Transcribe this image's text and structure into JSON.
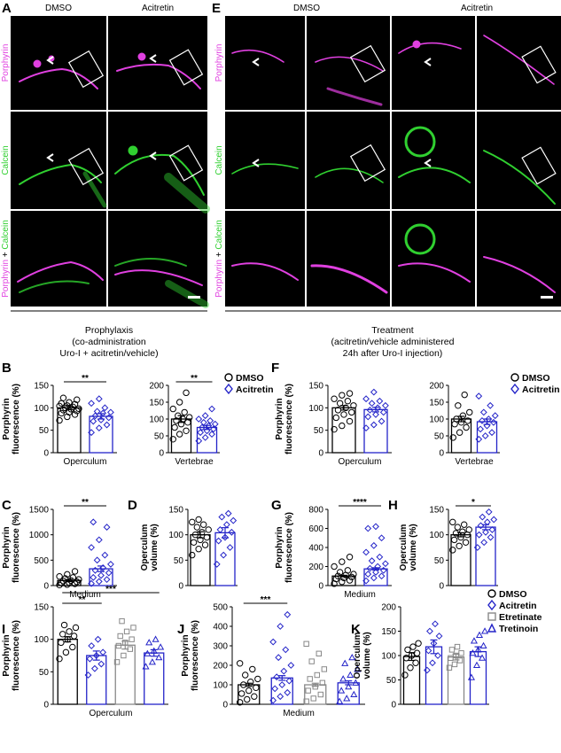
{
  "colors": {
    "dmso": "#000000",
    "acitretin": "#2323c8",
    "etretinate": "#888888",
    "tretinoin": "#2323c8",
    "porphyrin": "#e040e0",
    "calcein": "#30d030"
  },
  "microscopy": {
    "panel_a": "A",
    "panel_e": "E",
    "col_dmso": "DMSO",
    "col_acitretin": "Acitretin",
    "row_porphyrin": "Porphyrin",
    "row_calcein": "Calcein",
    "row_merge_a": "Porphyrin",
    "row_merge_plus": " + ",
    "row_merge_b": "Calcein"
  },
  "captions": {
    "prophylaxis": [
      "Prophylaxis",
      "(co-administration",
      "Uro-I + acitretin/vehicle)"
    ],
    "treatment": [
      "Treatment",
      "(acitretin/vehicle administered",
      "24h after Uro-I injection)"
    ]
  },
  "legend_bf": {
    "items": [
      "DMSO",
      "Acitretin"
    ]
  },
  "legend_k": {
    "items": [
      "DMSO",
      "Acitretin",
      "Etretinate",
      "Tretinoin"
    ]
  },
  "chart_data": [
    {
      "id": "B1",
      "panel": "B",
      "type": "bar",
      "ylabel": [
        "Porphyrin",
        "fluorescence (%)"
      ],
      "ylim": [
        0,
        150
      ],
      "yticks": [
        0,
        50,
        100,
        150
      ],
      "xlabel": "Operculum",
      "categories": [
        "DMSO",
        "Acitretin"
      ],
      "values": [
        100,
        81
      ],
      "sem": [
        4,
        6
      ],
      "points": [
        [
          72,
          80,
          85,
          88,
          90,
          93,
          95,
          97,
          98,
          100,
          102,
          104,
          105,
          108,
          110,
          112,
          118,
          122
        ],
        [
          45,
          55,
          62,
          70,
          73,
          78,
          82,
          88,
          90,
          92,
          100,
          110,
          120
        ]
      ],
      "significance": [
        {
          "from": 0,
          "to": 1,
          "label": "**"
        }
      ]
    },
    {
      "id": "B2",
      "type": "bar",
      "ylim": [
        0,
        200
      ],
      "yticks": [
        0,
        50,
        100,
        150,
        200
      ],
      "xlabel": "Vertebrae",
      "categories": [
        "DMSO",
        "Acitretin"
      ],
      "values": [
        100,
        75
      ],
      "sem": [
        10,
        6
      ],
      "points": [
        [
          40,
          55,
          65,
          75,
          85,
          90,
          95,
          100,
          105,
          110,
          120,
          130,
          150,
          178
        ],
        [
          35,
          45,
          55,
          60,
          65,
          70,
          75,
          80,
          85,
          90,
          95,
          100,
          110,
          130
        ]
      ],
      "significance": [
        {
          "from": 0,
          "to": 1,
          "label": "**"
        }
      ]
    },
    {
      "id": "F1",
      "panel": "F",
      "type": "bar",
      "ylabel": [
        "Porphyrin",
        "fluorescence (%)"
      ],
      "ylim": [
        0,
        150
      ],
      "yticks": [
        0,
        50,
        100,
        150
      ],
      "xlabel": "Operculum",
      "categories": [
        "DMSO",
        "Acitretin"
      ],
      "values": [
        100,
        96
      ],
      "sem": [
        5,
        5
      ],
      "points": [
        [
          52,
          60,
          70,
          78,
          85,
          90,
          95,
          100,
          105,
          110,
          115,
          120,
          128,
          132
        ],
        [
          55,
          62,
          70,
          80,
          85,
          90,
          95,
          100,
          105,
          110,
          115,
          120,
          135
        ]
      ],
      "significance": []
    },
    {
      "id": "F2",
      "type": "bar",
      "ylim": [
        0,
        200
      ],
      "yticks": [
        0,
        50,
        100,
        150,
        200
      ],
      "xlabel": "Vertebrae",
      "categories": [
        "DMSO",
        "Acitretin"
      ],
      "values": [
        100,
        92
      ],
      "sem": [
        8,
        8
      ],
      "points": [
        [
          45,
          60,
          75,
          85,
          90,
          95,
          100,
          110,
          120,
          140,
          172
        ],
        [
          40,
          50,
          60,
          70,
          80,
          90,
          95,
          100,
          110,
          120,
          140,
          168
        ]
      ],
      "significance": []
    },
    {
      "id": "C",
      "panel": "C",
      "type": "bar",
      "ylabel": [
        "Porphyrin",
        "fluorescence (%)"
      ],
      "ylim": [
        0,
        1500
      ],
      "yticks": [
        0,
        500,
        1000,
        1500
      ],
      "xlabel": "Medium",
      "categories": [
        "DMSO",
        "Acitretin"
      ],
      "values": [
        100,
        330
      ],
      "sem": [
        20,
        55
      ],
      "points": [
        [
          10,
          20,
          35,
          50,
          60,
          75,
          90,
          100,
          120,
          140,
          160,
          180,
          220,
          280
        ],
        [
          40,
          80,
          120,
          160,
          200,
          250,
          300,
          350,
          420,
          500,
          600,
          750,
          900,
          1150,
          1250
        ]
      ],
      "significance": [
        {
          "from": 0,
          "to": 1,
          "label": "**"
        }
      ]
    },
    {
      "id": "D",
      "panel": "D",
      "type": "bar",
      "ylabel": [
        "Operculum",
        "volume (%)"
      ],
      "ylim": [
        0,
        150
      ],
      "yticks": [
        0,
        50,
        100,
        150
      ],
      "categories": [
        "DMSO",
        "Acitretin"
      ],
      "values": [
        100,
        104
      ],
      "sem": [
        6,
        10
      ],
      "points": [
        [
          60,
          72,
          80,
          85,
          90,
          95,
          100,
          105,
          110,
          115,
          120,
          125,
          130
        ],
        [
          42,
          60,
          75,
          88,
          95,
          105,
          110,
          120,
          128,
          135,
          142
        ]
      ],
      "significance": []
    },
    {
      "id": "G",
      "panel": "G",
      "type": "bar",
      "ylabel": [
        "Porphyrin",
        "fluorescence (%)"
      ],
      "ylim": [
        0,
        800
      ],
      "yticks": [
        0,
        200,
        400,
        600,
        800
      ],
      "xlabel": "Medium",
      "categories": [
        "DMSO",
        "Acitretin"
      ],
      "values": [
        100,
        175
      ],
      "sem": [
        8,
        12
      ],
      "points": [
        [
          20,
          40,
          55,
          70,
          80,
          90,
          100,
          110,
          120,
          140,
          160,
          200,
          250,
          300
        ],
        [
          50,
          80,
          100,
          120,
          140,
          160,
          180,
          200,
          230,
          260,
          300,
          350,
          420,
          500,
          600,
          620
        ]
      ],
      "significance": [
        {
          "from": 0,
          "to": 1,
          "label": "****"
        }
      ]
    },
    {
      "id": "H",
      "panel": "H",
      "type": "bar",
      "ylabel": [
        "Operculum",
        "volume (%)"
      ],
      "ylim": [
        0,
        150
      ],
      "yticks": [
        0,
        50,
        100,
        150
      ],
      "categories": [
        "DMSO",
        "Acitretin"
      ],
      "values": [
        100,
        115
      ],
      "sem": [
        4,
        5
      ],
      "points": [
        [
          70,
          78,
          85,
          90,
          95,
          100,
          103,
          106,
          110,
          115,
          120,
          125
        ],
        [
          75,
          85,
          95,
          100,
          105,
          110,
          118,
          125,
          130,
          135,
          145
        ]
      ],
      "significance": [
        {
          "from": 0,
          "to": 1,
          "label": "*"
        }
      ]
    },
    {
      "id": "I",
      "panel": "I",
      "type": "bar",
      "ylabel": [
        "Porphyrin",
        "fluorescence (%)"
      ],
      "ylim": [
        0,
        150
      ],
      "yticks": [
        0,
        50,
        100,
        150
      ],
      "xlabel": "Operculum",
      "categories": [
        "DMSO",
        "Acitretin",
        "Etretinate",
        "Tretinoin"
      ],
      "values": [
        100,
        75,
        91,
        79
      ],
      "sem": [
        4,
        7,
        6,
        5
      ],
      "points": [
        [
          70,
          80,
          88,
          95,
          100,
          105,
          108,
          112,
          118,
          122
        ],
        [
          45,
          55,
          62,
          70,
          75,
          80,
          90,
          100
        ],
        [
          65,
          75,
          85,
          90,
          95,
          100,
          105,
          112,
          118,
          128
        ],
        [
          58,
          65,
          72,
          78,
          82,
          88,
          95,
          100
        ]
      ],
      "significance": [
        {
          "from": 0,
          "to": 1,
          "label": "**"
        },
        {
          "from": 0,
          "to": 3,
          "label": "***"
        }
      ]
    },
    {
      "id": "J",
      "panel": "J",
      "type": "bar",
      "ylabel": [
        "Porphyrin",
        "fluorescence (%)"
      ],
      "ylim": [
        0,
        500
      ],
      "yticks": [
        0,
        100,
        200,
        300,
        400,
        500
      ],
      "xlabel": "Medium",
      "categories": [
        "DMSO",
        "Acitretin",
        "Etretinate",
        "Tretinoin"
      ],
      "values": [
        100,
        135,
        100,
        110
      ],
      "sem": [
        8,
        12,
        8,
        10
      ],
      "points": [
        [
          10,
          25,
          40,
          55,
          70,
          85,
          100,
          115,
          130,
          150,
          180,
          210
        ],
        [
          20,
          40,
          60,
          80,
          100,
          120,
          140,
          170,
          200,
          240,
          280,
          320,
          400,
          460
        ],
        [
          15,
          30,
          50,
          70,
          90,
          110,
          130,
          150,
          180,
          220,
          260,
          310
        ],
        [
          15,
          30,
          50,
          70,
          90,
          110,
          130,
          150,
          180,
          210,
          240
        ]
      ],
      "significance": [
        {
          "from": 0,
          "to": 1,
          "label": "***"
        }
      ]
    },
    {
      "id": "K",
      "panel": "K",
      "type": "bar",
      "ylabel": [
        "Operculum",
        "volume (%)"
      ],
      "ylim": [
        0,
        200
      ],
      "yticks": [
        0,
        50,
        100,
        150,
        200
      ],
      "categories": [
        "DMSO",
        "Acitretin",
        "Etretinate",
        "Tretinoin"
      ],
      "values": [
        98,
        118,
        97,
        108
      ],
      "sem": [
        8,
        14,
        6,
        10
      ],
      "points": [
        [
          60,
          75,
          85,
          95,
          100,
          105,
          112,
          118,
          125
        ],
        [
          70,
          85,
          100,
          110,
          125,
          140,
          150,
          165
        ],
        [
          75,
          82,
          90,
          95,
          100,
          105,
          112,
          118
        ],
        [
          55,
          80,
          95,
          105,
          112,
          120,
          130,
          142,
          150
        ]
      ],
      "significance": []
    }
  ]
}
